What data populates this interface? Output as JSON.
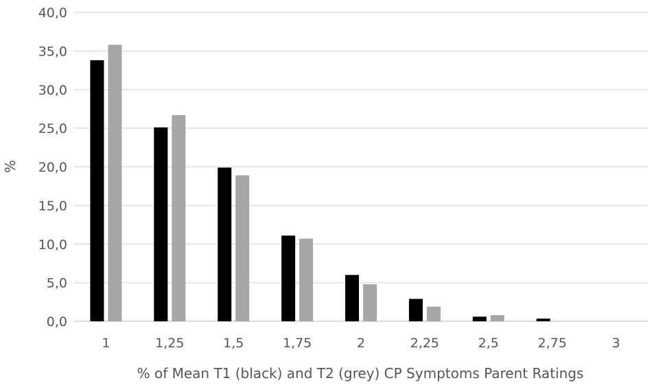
{
  "chart_data": {
    "type": "bar",
    "title": "",
    "xlabel": "% of Mean T1 (black) and T2 (grey) CP Symptoms Parent Ratings",
    "ylabel": "%",
    "ylim": [
      0,
      40
    ],
    "yticks": [
      "0,0",
      "5,0",
      "10,0",
      "15,0",
      "20,0",
      "25,0",
      "30,0",
      "35,0",
      "40,0"
    ],
    "categories": [
      "1",
      "1,25",
      "1,5",
      "1,75",
      "2",
      "2,25",
      "2,5",
      "2,75",
      "3"
    ],
    "series": [
      {
        "color": "#000000",
        "values": [
          33.8,
          25.1,
          19.9,
          11.1,
          6.0,
          2.9,
          0.6,
          0.35,
          0
        ]
      },
      {
        "color": "#a6a6a6",
        "values": [
          35.8,
          26.7,
          18.9,
          10.7,
          4.8,
          1.9,
          0.8,
          0,
          0
        ]
      }
    ],
    "grid": true,
    "legend": "none"
  }
}
